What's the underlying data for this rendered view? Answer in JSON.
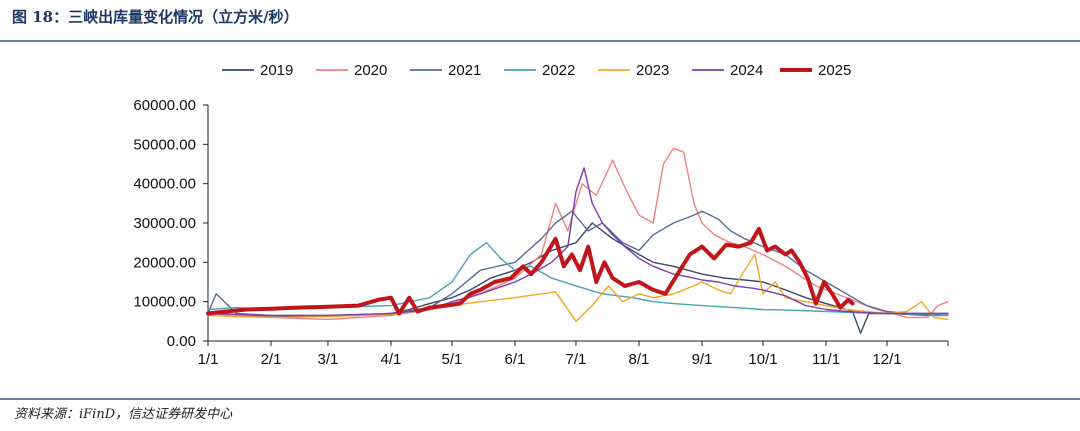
{
  "figure": {
    "title": "图 18：三峡出库量变化情况（立方米/秒）",
    "source": "资料来源：iFinD，信达证券研发中心"
  },
  "chart_data": {
    "type": "line",
    "title": "",
    "xlabel": "",
    "ylabel": "",
    "ylim": [
      0,
      60000
    ],
    "yticks": [
      "60000.00",
      "50000.00",
      "40000.00",
      "30000.00",
      "20000.00",
      "10000.00",
      "0.00"
    ],
    "xticks": [
      "1/1",
      "2/1",
      "3/1",
      "4/1",
      "5/1",
      "6/1",
      "7/1",
      "8/1",
      "9/1",
      "10/1",
      "11/1",
      "12/1"
    ],
    "grid": false,
    "legend_position": "top",
    "x_unit": "day of year",
    "series": [
      {
        "name": "2019",
        "color": "#3a4a6b",
        "width": 1.4,
        "x": [
          1,
          10,
          20,
          32,
          45,
          60,
          75,
          91,
          100,
          110,
          121,
          130,
          140,
          152,
          160,
          170,
          182,
          190,
          200,
          213,
          220,
          230,
          244,
          255,
          265,
          274,
          285,
          295,
          305,
          312,
          318,
          322,
          326,
          335,
          345,
          355,
          365
        ],
        "y": [
          7000,
          6800,
          6500,
          6400,
          6200,
          6300,
          6500,
          7000,
          8000,
          9500,
          11000,
          13000,
          16000,
          18000,
          20000,
          23000,
          25000,
          30000,
          26000,
          22000,
          20000,
          19000,
          17000,
          16000,
          15500,
          15000,
          13000,
          11000,
          9500,
          8500,
          7500,
          2000,
          7000,
          7000,
          6800,
          6500,
          6500
        ]
      },
      {
        "name": "2020",
        "color": "#f08080",
        "width": 1.4,
        "x": [
          1,
          15,
          32,
          60,
          91,
          110,
          121,
          135,
          152,
          165,
          172,
          178,
          185,
          192,
          200,
          207,
          213,
          220,
          225,
          230,
          235,
          240,
          244,
          250,
          258,
          265,
          274,
          285,
          300,
          315,
          320,
          330,
          345,
          355,
          360,
          365
        ],
        "y": [
          7000,
          6500,
          6000,
          5500,
          6500,
          8000,
          9500,
          12000,
          16000,
          22000,
          35000,
          28000,
          40000,
          37000,
          46000,
          38000,
          32000,
          30000,
          45000,
          49000,
          48000,
          35000,
          30000,
          27000,
          25000,
          24000,
          22000,
          19000,
          14000,
          11000,
          10000,
          8000,
          6000,
          6000,
          9000,
          10000
        ]
      },
      {
        "name": "2021",
        "color": "#5a6a9c",
        "width": 1.4,
        "x": [
          1,
          5,
          15,
          32,
          60,
          91,
          110,
          121,
          135,
          152,
          165,
          172,
          180,
          188,
          195,
          205,
          213,
          220,
          230,
          240,
          244,
          252,
          258,
          265,
          274,
          285,
          295,
          305,
          315,
          325,
          335,
          345,
          355,
          365
        ],
        "y": [
          7000,
          12000,
          7000,
          6500,
          6500,
          7000,
          8500,
          12000,
          18000,
          20000,
          26000,
          30000,
          33000,
          28000,
          30000,
          25000,
          23000,
          27000,
          30000,
          32000,
          33000,
          31000,
          28000,
          26000,
          24000,
          22000,
          18000,
          15000,
          12000,
          9000,
          7500,
          7000,
          7000,
          7000
        ]
      },
      {
        "name": "2022",
        "color": "#4aa3b8",
        "width": 1.4,
        "x": [
          1,
          15,
          32,
          60,
          91,
          110,
          121,
          130,
          138,
          145,
          152,
          160,
          170,
          182,
          195,
          210,
          220,
          230,
          244,
          260,
          274,
          290,
          305,
          320,
          335,
          350,
          365
        ],
        "y": [
          8000,
          8500,
          8000,
          8500,
          9000,
          11000,
          15000,
          22000,
          25000,
          21000,
          18000,
          19000,
          16000,
          14000,
          12000,
          11000,
          10000,
          9500,
          9000,
          8500,
          8000,
          7800,
          7500,
          7200,
          7000,
          6800,
          6500
        ]
      },
      {
        "name": "2023",
        "color": "#f5a623",
        "width": 1.4,
        "x": [
          1,
          15,
          32,
          60,
          91,
          110,
          121,
          135,
          152,
          165,
          172,
          182,
          190,
          198,
          205,
          213,
          220,
          230,
          240,
          244,
          252,
          258,
          265,
          270,
          274,
          280,
          285,
          295,
          305,
          315,
          325,
          335,
          345,
          352,
          358,
          365
        ],
        "y": [
          6500,
          6200,
          6000,
          6200,
          6800,
          8000,
          9000,
          10000,
          11000,
          12000,
          12500,
          5000,
          9000,
          14000,
          10000,
          12000,
          11000,
          12000,
          14000,
          15000,
          13000,
          12000,
          18000,
          22000,
          12000,
          15000,
          11000,
          10000,
          9000,
          8000,
          7500,
          7000,
          7500,
          10000,
          6000,
          5500
        ]
      },
      {
        "name": "2024",
        "color": "#7a3fb0",
        "width": 1.4,
        "x": [
          1,
          15,
          32,
          60,
          91,
          110,
          121,
          135,
          152,
          160,
          170,
          178,
          182,
          186,
          190,
          195,
          200,
          206,
          213,
          220,
          230,
          240,
          244,
          252,
          260,
          268,
          274,
          285,
          295,
          305,
          315,
          325,
          335,
          345,
          355,
          365
        ],
        "y": [
          7000,
          6800,
          6500,
          6500,
          7000,
          8000,
          10000,
          12000,
          15000,
          17000,
          20000,
          24000,
          38000,
          44000,
          35000,
          30000,
          27000,
          24000,
          21000,
          19000,
          17000,
          16000,
          15500,
          15000,
          14000,
          13500,
          13000,
          11500,
          9000,
          8000,
          7500,
          7200,
          7000,
          7000,
          7000,
          7000
        ]
      },
      {
        "name": "2025",
        "color": "#c0151b",
        "width": 4,
        "x": [
          1,
          10,
          20,
          32,
          45,
          60,
          75,
          85,
          91,
          95,
          100,
          104,
          110,
          118,
          125,
          130,
          135,
          142,
          150,
          156,
          160,
          165,
          172,
          176,
          180,
          184,
          188,
          192,
          196,
          200,
          206,
          213,
          220,
          226,
          232,
          238,
          244,
          250,
          256,
          262,
          268,
          272,
          276,
          280,
          285,
          288,
          292,
          296,
          300,
          304,
          308,
          312,
          316,
          318
        ],
        "y": [
          7000,
          7500,
          8000,
          8200,
          8500,
          8700,
          9000,
          10500,
          11000,
          7000,
          11000,
          7500,
          8500,
          9000,
          9500,
          12000,
          13000,
          15000,
          16000,
          19000,
          17000,
          20000,
          26000,
          19000,
          22000,
          18000,
          24000,
          15000,
          20000,
          16000,
          14000,
          15000,
          13000,
          12000,
          17000,
          22000,
          24000,
          21000,
          24500,
          24000,
          25000,
          28500,
          23000,
          24000,
          22000,
          23000,
          20000,
          16000,
          9500,
          15000,
          12000,
          8500,
          10500,
          9500
        ]
      }
    ]
  }
}
